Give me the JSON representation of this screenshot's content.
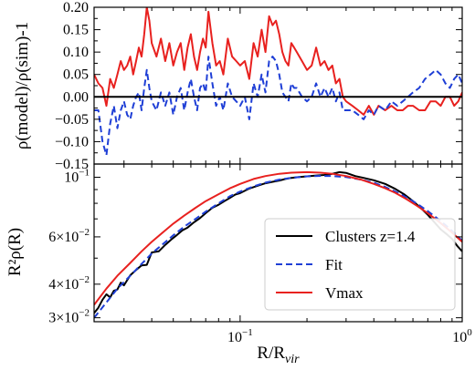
{
  "chart_data": [
    {
      "type": "line",
      "panel": "top",
      "ylabel": "ρ(model)/ρ(sim)-1",
      "xscale": "log",
      "xlim": [
        0.022,
        1.0
      ],
      "ylim": [
        -0.15,
        0.2
      ],
      "yticks": [
        -0.15,
        -0.1,
        -0.05,
        0.0,
        0.05,
        0.1,
        0.15,
        0.2
      ],
      "ytick_labels": [
        "−0.15",
        "−0.10",
        "−0.05",
        "0.00",
        "0.05",
        "0.10",
        "0.15",
        "0.20"
      ],
      "reference_line": 0.0,
      "series": [
        {
          "color": "#e8211f",
          "style": "solid",
          "x": [
            0.022,
            0.023,
            0.024,
            0.025,
            0.026,
            0.027,
            0.028,
            0.029,
            0.03,
            0.031,
            0.032,
            0.033,
            0.034,
            0.035,
            0.036,
            0.037,
            0.038,
            0.039,
            0.04,
            0.042,
            0.044,
            0.046,
            0.048,
            0.05,
            0.052,
            0.054,
            0.056,
            0.058,
            0.06,
            0.062,
            0.064,
            0.066,
            0.068,
            0.07,
            0.072,
            0.075,
            0.078,
            0.081,
            0.084,
            0.088,
            0.092,
            0.096,
            0.1,
            0.105,
            0.11,
            0.115,
            0.12,
            0.125,
            0.13,
            0.135,
            0.14,
            0.145,
            0.15,
            0.155,
            0.16,
            0.165,
            0.17,
            0.175,
            0.18,
            0.19,
            0.2,
            0.21,
            0.22,
            0.23,
            0.24,
            0.25,
            0.26,
            0.27,
            0.28,
            0.29,
            0.3,
            0.32,
            0.34,
            0.36,
            0.38,
            0.4,
            0.42,
            0.45,
            0.48,
            0.51,
            0.54,
            0.57,
            0.6,
            0.64,
            0.68,
            0.72,
            0.76,
            0.8,
            0.84,
            0.88,
            0.92,
            0.96,
            1.0
          ],
          "y": [
            0.05,
            0.03,
            0.02,
            -0.02,
            0.04,
            0.02,
            0.05,
            0.08,
            0.06,
            0.07,
            0.09,
            0.05,
            0.08,
            0.11,
            0.09,
            0.14,
            0.2,
            0.17,
            0.12,
            0.09,
            0.13,
            0.08,
            0.12,
            0.07,
            0.1,
            0.12,
            0.06,
            0.11,
            0.14,
            0.09,
            0.06,
            0.1,
            0.13,
            0.11,
            0.19,
            0.12,
            0.07,
            0.08,
            0.05,
            0.13,
            0.09,
            0.08,
            0.07,
            0.08,
            0.04,
            0.12,
            0.09,
            0.15,
            0.1,
            0.18,
            0.16,
            0.17,
            0.14,
            0.1,
            0.08,
            0.07,
            0.12,
            0.11,
            0.1,
            0.08,
            0.06,
            0.07,
            0.11,
            0.07,
            0.08,
            0.06,
            0.07,
            0.03,
            0.04,
            0.0,
            -0.01,
            -0.02,
            -0.03,
            -0.04,
            -0.02,
            -0.04,
            -0.02,
            -0.03,
            -0.02,
            -0.03,
            -0.03,
            -0.02,
            -0.02,
            -0.03,
            -0.03,
            -0.01,
            -0.01,
            -0.02,
            0.0,
            0.0,
            -0.02,
            -0.01,
            0.01
          ]
        },
        {
          "color": "#1f3fd6",
          "style": "dashed",
          "x": [
            0.022,
            0.023,
            0.024,
            0.025,
            0.026,
            0.027,
            0.028,
            0.029,
            0.03,
            0.031,
            0.032,
            0.033,
            0.034,
            0.035,
            0.036,
            0.037,
            0.038,
            0.039,
            0.04,
            0.042,
            0.044,
            0.046,
            0.048,
            0.05,
            0.052,
            0.054,
            0.056,
            0.058,
            0.06,
            0.062,
            0.064,
            0.066,
            0.068,
            0.07,
            0.072,
            0.075,
            0.078,
            0.081,
            0.084,
            0.088,
            0.092,
            0.096,
            0.1,
            0.105,
            0.11,
            0.115,
            0.12,
            0.125,
            0.13,
            0.135,
            0.14,
            0.145,
            0.15,
            0.155,
            0.16,
            0.165,
            0.17,
            0.175,
            0.18,
            0.19,
            0.2,
            0.21,
            0.22,
            0.23,
            0.24,
            0.25,
            0.26,
            0.27,
            0.28,
            0.29,
            0.3,
            0.32,
            0.34,
            0.36,
            0.38,
            0.4,
            0.42,
            0.45,
            0.48,
            0.51,
            0.54,
            0.57,
            0.6,
            0.64,
            0.68,
            0.72,
            0.76,
            0.8,
            0.84,
            0.88,
            0.92,
            0.96,
            1.0
          ],
          "y": [
            -0.03,
            -0.03,
            -0.1,
            -0.13,
            -0.06,
            -0.02,
            -0.07,
            -0.03,
            -0.01,
            -0.04,
            -0.05,
            -0.02,
            0.0,
            0.01,
            -0.03,
            0.02,
            0.06,
            0.02,
            -0.01,
            -0.03,
            0.01,
            -0.02,
            0.01,
            -0.04,
            0.0,
            0.02,
            -0.03,
            0.01,
            0.04,
            0.0,
            -0.03,
            0.02,
            0.03,
            0.01,
            0.09,
            0.03,
            -0.02,
            0.0,
            -0.03,
            0.03,
            0.0,
            -0.01,
            -0.02,
            0.0,
            -0.05,
            0.03,
            0.0,
            0.05,
            0.01,
            0.08,
            0.09,
            0.08,
            0.05,
            0.01,
            0.0,
            -0.01,
            0.03,
            0.02,
            0.02,
            0.0,
            -0.01,
            0.0,
            0.03,
            0.0,
            0.02,
            0.0,
            0.02,
            -0.01,
            0.01,
            -0.03,
            -0.03,
            -0.03,
            -0.04,
            -0.05,
            -0.03,
            -0.04,
            -0.02,
            -0.03,
            -0.01,
            -0.02,
            -0.01,
            0.0,
            0.01,
            0.02,
            0.04,
            0.05,
            0.06,
            0.05,
            0.03,
            0.02,
            0.04,
            0.05,
            0.03
          ]
        }
      ]
    },
    {
      "type": "line",
      "panel": "bottom",
      "xlabel": "R/R",
      "xlabel_sub": "vir",
      "ylabel": "R²ρ(R)",
      "xscale": "log",
      "yscale": "log",
      "xlim": [
        0.022,
        1.0
      ],
      "ylim": [
        0.029,
        0.112
      ],
      "xticks": [
        0.1,
        1.0
      ],
      "xtick_labels": [
        {
          "base": "10",
          "exp": "−1"
        },
        {
          "base": "10",
          "exp": "0"
        }
      ],
      "yticks": [
        0.03,
        0.04,
        0.06,
        0.1
      ],
      "ytick_labels": [
        {
          "base": "3×10",
          "exp": "−2"
        },
        {
          "base": "4×10",
          "exp": "−2"
        },
        {
          "base": "6×10",
          "exp": "−2"
        },
        {
          "base": "10",
          "exp": "−1"
        }
      ],
      "legend": {
        "placement": "lower-right",
        "entries": [
          {
            "label": "Clusters z=1.4",
            "color": "#000000",
            "style": "solid"
          },
          {
            "label": "Fit",
            "color": "#1f3fd6",
            "style": "dashed"
          },
          {
            "label": "Vmax",
            "color": "#e8211f",
            "style": "solid"
          }
        ]
      },
      "series": [
        {
          "name": "Clusters z=1.4",
          "color": "#000000",
          "style": "solid",
          "x": [
            0.022,
            0.023,
            0.024,
            0.025,
            0.026,
            0.027,
            0.028,
            0.029,
            0.03,
            0.032,
            0.034,
            0.036,
            0.038,
            0.04,
            0.043,
            0.046,
            0.049,
            0.052,
            0.055,
            0.058,
            0.062,
            0.066,
            0.07,
            0.075,
            0.08,
            0.085,
            0.09,
            0.095,
            0.1,
            0.11,
            0.12,
            0.13,
            0.14,
            0.15,
            0.16,
            0.17,
            0.18,
            0.2,
            0.22,
            0.24,
            0.26,
            0.28,
            0.3,
            0.33,
            0.36,
            0.4,
            0.45,
            0.5,
            0.55,
            0.6,
            0.65,
            0.7,
            0.75,
            0.8,
            0.85,
            0.9,
            0.95,
            1.0
          ],
          "y": [
            0.0312,
            0.0327,
            0.035,
            0.0367,
            0.0357,
            0.0378,
            0.0382,
            0.0405,
            0.0396,
            0.0432,
            0.0452,
            0.047,
            0.0472,
            0.0525,
            0.053,
            0.056,
            0.0587,
            0.061,
            0.0635,
            0.065,
            0.068,
            0.0705,
            0.0735,
            0.077,
            0.079,
            0.0815,
            0.0838,
            0.0862,
            0.0873,
            0.0908,
            0.093,
            0.095,
            0.0962,
            0.0972,
            0.0985,
            0.0995,
            0.1,
            0.1008,
            0.1015,
            0.102,
            0.103,
            0.1045,
            0.1038,
            0.101,
            0.0995,
            0.0975,
            0.0945,
            0.0905,
            0.0862,
            0.0815,
            0.077,
            0.0725,
            0.068,
            0.064,
            0.0615,
            0.059,
            0.0555,
            0.053
          ]
        },
        {
          "name": "Fit",
          "color": "#1f3fd6",
          "style": "dashed",
          "x": [
            0.022,
            0.025,
            0.028,
            0.032,
            0.036,
            0.04,
            0.045,
            0.05,
            0.056,
            0.063,
            0.07,
            0.08,
            0.09,
            0.1,
            0.115,
            0.13,
            0.15,
            0.17,
            0.2,
            0.23,
            0.26,
            0.3,
            0.35,
            0.4,
            0.45,
            0.5,
            0.56,
            0.63,
            0.7,
            0.8,
            0.9,
            1.0
          ],
          "y": [
            0.03,
            0.0342,
            0.0385,
            0.043,
            0.0476,
            0.052,
            0.0565,
            0.0608,
            0.0655,
            0.07,
            0.0745,
            0.08,
            0.085,
            0.0885,
            0.0925,
            0.0955,
            0.098,
            0.0995,
            0.1008,
            0.1012,
            0.101,
            0.1002,
            0.098,
            0.0955,
            0.092,
            0.0885,
            0.0842,
            0.0795,
            0.0748,
            0.0688,
            0.0632,
            0.058
          ]
        },
        {
          "name": "Vmax",
          "color": "#e8211f",
          "style": "solid",
          "x": [
            0.022,
            0.025,
            0.028,
            0.032,
            0.036,
            0.04,
            0.045,
            0.05,
            0.056,
            0.063,
            0.07,
            0.08,
            0.09,
            0.1,
            0.115,
            0.13,
            0.15,
            0.17,
            0.2,
            0.23,
            0.26,
            0.3,
            0.35,
            0.4,
            0.45,
            0.5,
            0.56,
            0.63,
            0.7,
            0.8,
            0.9,
            1.0
          ],
          "y": [
            0.0335,
            0.0385,
            0.043,
            0.048,
            0.053,
            0.0575,
            0.0625,
            0.0672,
            0.072,
            0.077,
            0.0815,
            0.0865,
            0.091,
            0.0945,
            0.0985,
            0.101,
            0.103,
            0.104,
            0.1045,
            0.104,
            0.103,
            0.101,
            0.098,
            0.0945,
            0.091,
            0.0875,
            0.083,
            0.078,
            0.0735,
            0.0675,
            0.0622,
            0.0575
          ]
        }
      ]
    }
  ]
}
